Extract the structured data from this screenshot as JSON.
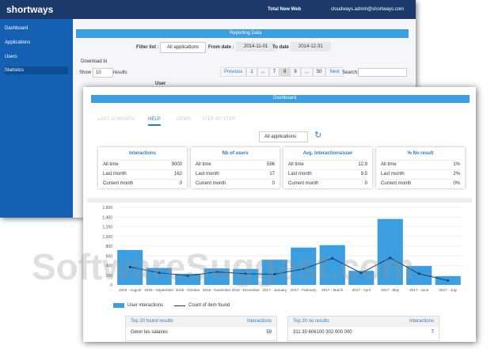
{
  "back_window": {
    "logo": "shortways",
    "topbar": {
      "site": "Total New Web",
      "user": "cloudways.admin@shortways.com"
    },
    "sidebar": [
      "Dashboard",
      "Applications",
      "Users",
      "Statistics"
    ],
    "panel_title": "Reporting Data",
    "filter": {
      "label": "Filter list :",
      "select": "All applications",
      "from_label": "From date :",
      "from": "2014-11-01",
      "to_label": "To date :",
      "to": "2014-12-31"
    },
    "download": "Download to",
    "show": "Show",
    "show_count": "10",
    "results": "results",
    "pagination": [
      "Previous",
      "1",
      "...",
      "7",
      "8",
      "9",
      "...",
      "50",
      "Next"
    ],
    "search": "Search:",
    "column": "User"
  },
  "front_window": {
    "title": "Dashboard",
    "tabs": [
      "LAST 12 MONTH",
      "HELP",
      "NEWS",
      "STEP BY STEP"
    ],
    "select": "All applications",
    "cards": [
      {
        "title": "Interactions",
        "rows": [
          [
            "All time",
            "9000"
          ],
          [
            "Last month",
            "162"
          ],
          [
            "Current month",
            "0"
          ]
        ]
      },
      {
        "title": "Nb of users",
        "rows": [
          [
            "All time",
            "596"
          ],
          [
            "Last month",
            "17"
          ],
          [
            "Current month",
            "0"
          ]
        ]
      },
      {
        "title": "Avg. Interactions/user",
        "rows": [
          [
            "All time",
            "12.9"
          ],
          [
            "Last month",
            "9.5"
          ],
          [
            "Current month",
            "0"
          ]
        ]
      },
      {
        "title": "% No result",
        "rows": [
          [
            "All time",
            "1%"
          ],
          [
            "Last month",
            "2%"
          ],
          [
            "Current month",
            "0%"
          ]
        ]
      }
    ],
    "tables": [
      {
        "title": "Top 20 found results",
        "col": "Interactions",
        "rows": [
          [
            "Gérer les salaires",
            "59"
          ]
        ]
      },
      {
        "title": "Top 20 no results",
        "col": "Interactions",
        "rows": [
          [
            "311 30 606100 302 000 000",
            "7"
          ]
        ]
      }
    ]
  },
  "watermark": "SoftwareSuggest.com",
  "chart_data": {
    "type": "bar-line",
    "categories": [
      "2016 - August",
      "2016 - September",
      "2016 - October",
      "2016 - November",
      "2016 - December",
      "2017 - January",
      "2017 - February",
      "2017 - March",
      "2017 - April",
      "2017 - May",
      "2017 - June",
      "2017 - July"
    ],
    "series": [
      {
        "name": "User interactions",
        "color": "#3a9ee0",
        "type": "bar",
        "values": [
          720,
          350,
          230,
          340,
          330,
          520,
          770,
          820,
          290,
          1360,
          390,
          180
        ]
      },
      {
        "name": "Count of item found",
        "color": "#1b3a6b",
        "type": "line",
        "values": [
          370,
          250,
          190,
          267,
          230,
          220,
          330,
          548,
          245,
          558,
          230,
          90
        ]
      }
    ],
    "ylim": [
      0,
      1600
    ],
    "yticks": [
      0,
      200,
      400,
      600,
      800,
      {
        "value": 1000,
        "label": "1,000"
      },
      {
        "value": 1200,
        "label": "1,200"
      },
      {
        "value": 1400,
        "label": "1,400"
      },
      {
        "value": 1600,
        "label": "1,600"
      }
    ],
    "grid": true
  }
}
